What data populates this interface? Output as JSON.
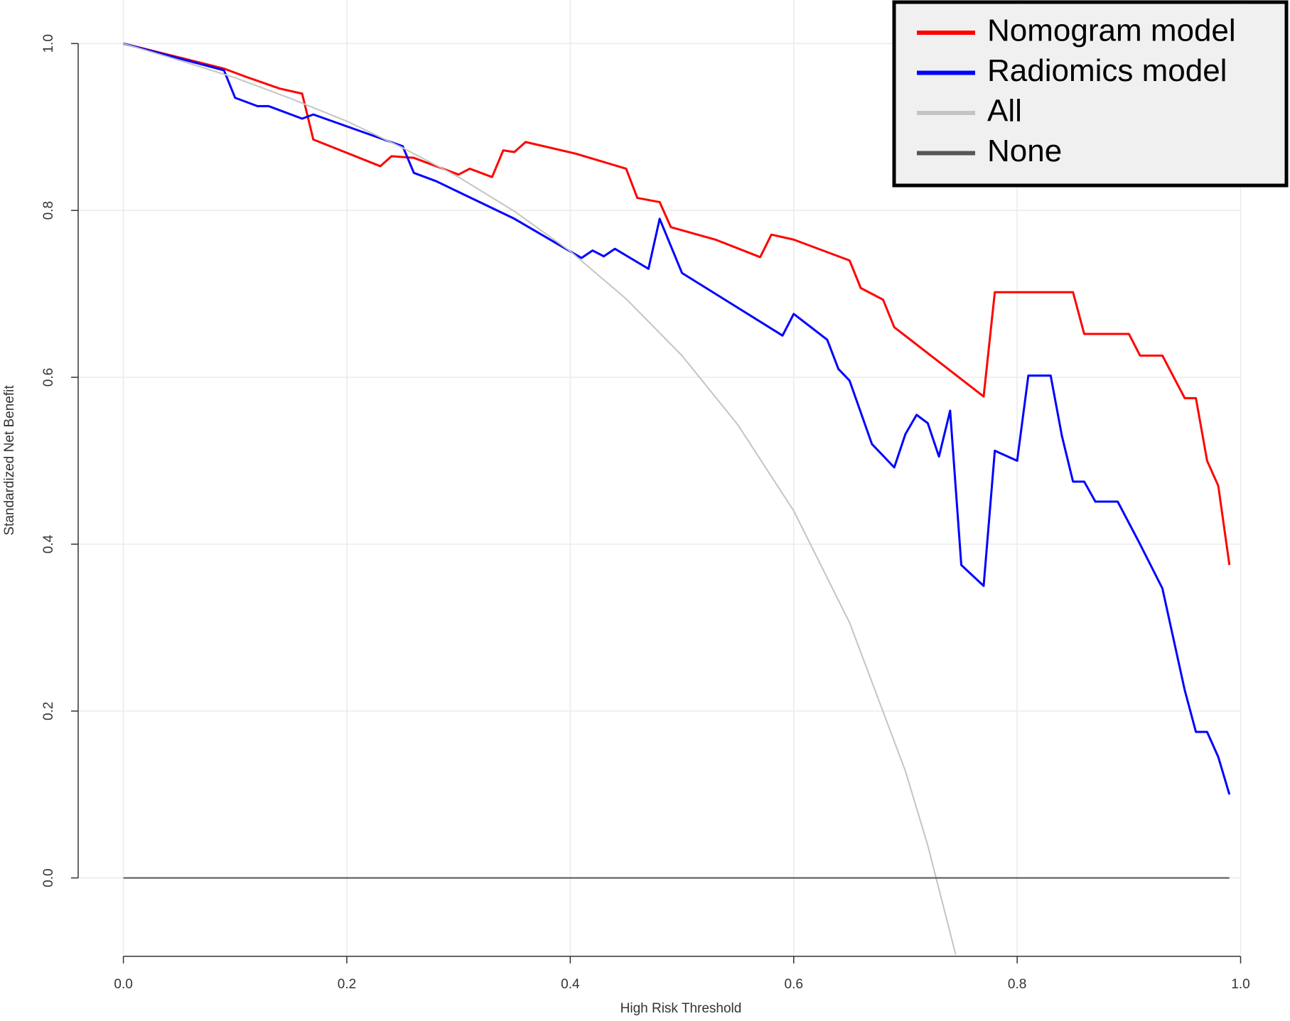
{
  "chart_data": {
    "type": "line",
    "xlabel": "High Risk Threshold",
    "ylabel": "Standardized Net Benefit",
    "xlim": [
      0,
      1.0
    ],
    "ylim": [
      -0.094,
      1.0
    ],
    "xticks": [
      {
        "value": 0,
        "label": "0.0"
      },
      0.2,
      0.4,
      0.6,
      0.8,
      {
        "value": 1,
        "label": "1.0"
      }
    ],
    "yticks": [
      {
        "value": 0,
        "label": "0.0"
      },
      0.2,
      0.4,
      0.6,
      0.8,
      {
        "value": 1,
        "label": "1.0"
      }
    ],
    "grid": true,
    "legend": "top-right",
    "series": [
      {
        "name": "Nomogram model",
        "color": "#ff0000",
        "x": [
          0,
          0.09,
          0.11,
          0.14,
          0.16,
          0.17,
          0.23,
          0.24,
          0.26,
          0.3,
          0.31,
          0.33,
          0.34,
          0.35,
          0.36,
          0.405,
          0.45,
          0.46,
          0.48,
          0.49,
          0.53,
          0.57,
          0.58,
          0.6,
          0.65,
          0.66,
          0.68,
          0.69,
          0.77,
          0.78,
          0.85,
          0.86,
          0.9,
          0.91,
          0.93,
          0.95,
          0.96,
          0.97,
          0.98,
          0.99
        ],
        "values": [
          1.0,
          0.97,
          0.96,
          0.946,
          0.94,
          0.885,
          0.853,
          0.865,
          0.863,
          0.843,
          0.85,
          0.84,
          0.872,
          0.87,
          0.882,
          0.868,
          0.85,
          0.815,
          0.81,
          0.78,
          0.765,
          0.744,
          0.771,
          0.765,
          0.74,
          0.707,
          0.693,
          0.66,
          0.577,
          0.702,
          0.702,
          0.652,
          0.652,
          0.626,
          0.626,
          0.575,
          0.575,
          0.5,
          0.47,
          0.375
        ]
      },
      {
        "name": "Radiomics model",
        "color": "#0000ff",
        "x": [
          0,
          0.09,
          0.1,
          0.12,
          0.13,
          0.16,
          0.17,
          0.25,
          0.26,
          0.28,
          0.35,
          0.41,
          0.42,
          0.43,
          0.44,
          0.47,
          0.48,
          0.5,
          0.59,
          0.6,
          0.63,
          0.64,
          0.65,
          0.67,
          0.69,
          0.7,
          0.71,
          0.72,
          0.73,
          0.74,
          0.75,
          0.77,
          0.78,
          0.8,
          0.81,
          0.83,
          0.84,
          0.85,
          0.86,
          0.87,
          0.89,
          0.91,
          0.93,
          0.95,
          0.96,
          0.97,
          0.98,
          0.99
        ],
        "values": [
          1.0,
          0.968,
          0.935,
          0.925,
          0.925,
          0.91,
          0.915,
          0.877,
          0.845,
          0.835,
          0.79,
          0.743,
          0.752,
          0.745,
          0.754,
          0.73,
          0.79,
          0.725,
          0.65,
          0.676,
          0.645,
          0.61,
          0.596,
          0.52,
          0.492,
          0.532,
          0.555,
          0.545,
          0.505,
          0.56,
          0.375,
          0.35,
          0.512,
          0.5,
          0.602,
          0.602,
          0.53,
          0.475,
          0.475,
          0.451,
          0.451,
          0.4,
          0.347,
          0.225,
          0.175,
          0.175,
          0.145,
          0.1
        ]
      },
      {
        "name": "All",
        "color": "#c4c4c4",
        "x": [
          0,
          0.05,
          0.1,
          0.15,
          0.2,
          0.25,
          0.3,
          0.35,
          0.4,
          0.45,
          0.5,
          0.55,
          0.6,
          0.65,
          0.7,
          0.72,
          0.745
        ],
        "values": [
          1.0,
          0.98,
          0.959,
          0.934,
          0.907,
          0.875,
          0.84,
          0.799,
          0.751,
          0.694,
          0.626,
          0.543,
          0.44,
          0.306,
          0.128,
          0.039,
          -0.092
        ]
      },
      {
        "name": "None",
        "color": "#555555",
        "x": [
          0,
          0.99
        ],
        "values": [
          0,
          0
        ]
      }
    ]
  }
}
